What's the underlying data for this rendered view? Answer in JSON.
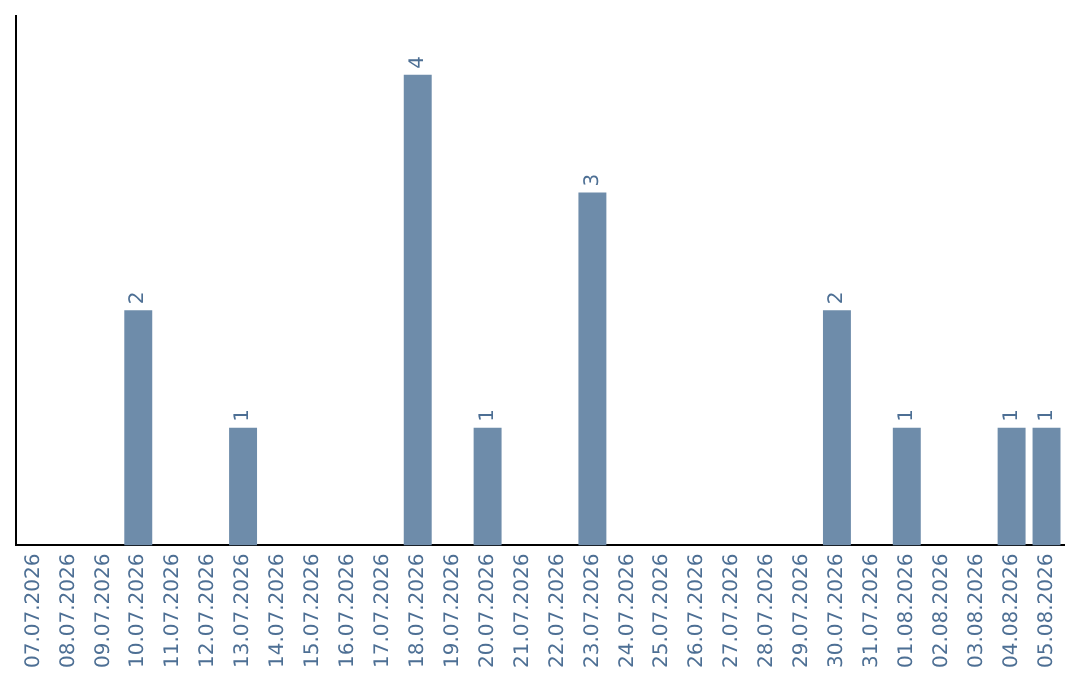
{
  "chart_data": {
    "type": "bar",
    "categories": [
      "07.07.2026",
      "08.07.2026",
      "09.07.2026",
      "10.07.2026",
      "11.07.2026",
      "12.07.2026",
      "13.07.2026",
      "14.07.2026",
      "15.07.2026",
      "16.07.2026",
      "17.07.2026",
      "18.07.2026",
      "19.07.2026",
      "20.07.2026",
      "21.07.2026",
      "22.07.2026",
      "23.07.2026",
      "24.07.2026",
      "25.07.2026",
      "26.07.2026",
      "27.07.2026",
      "28.07.2026",
      "29.07.2026",
      "30.07.2026",
      "31.07.2026",
      "01.08.2026",
      "02.08.2026",
      "03.08.2026",
      "04.08.2026",
      "05.08.2026"
    ],
    "values": [
      0,
      0,
      0,
      2,
      0,
      0,
      1,
      0,
      0,
      0,
      0,
      4,
      0,
      1,
      0,
      0,
      3,
      0,
      0,
      0,
      0,
      0,
      0,
      2,
      0,
      1,
      0,
      0,
      1,
      1
    ],
    "value_labels": [
      null,
      null,
      null,
      "2",
      null,
      null,
      "1",
      null,
      null,
      null,
      null,
      "4",
      null,
      "1",
      null,
      null,
      "3",
      null,
      null,
      null,
      null,
      null,
      null,
      "2",
      null,
      "1",
      null,
      null,
      "1",
      "1"
    ],
    "color": "#6e8caa",
    "grid": false,
    "legend": false,
    "tick_labels": "x"
  }
}
